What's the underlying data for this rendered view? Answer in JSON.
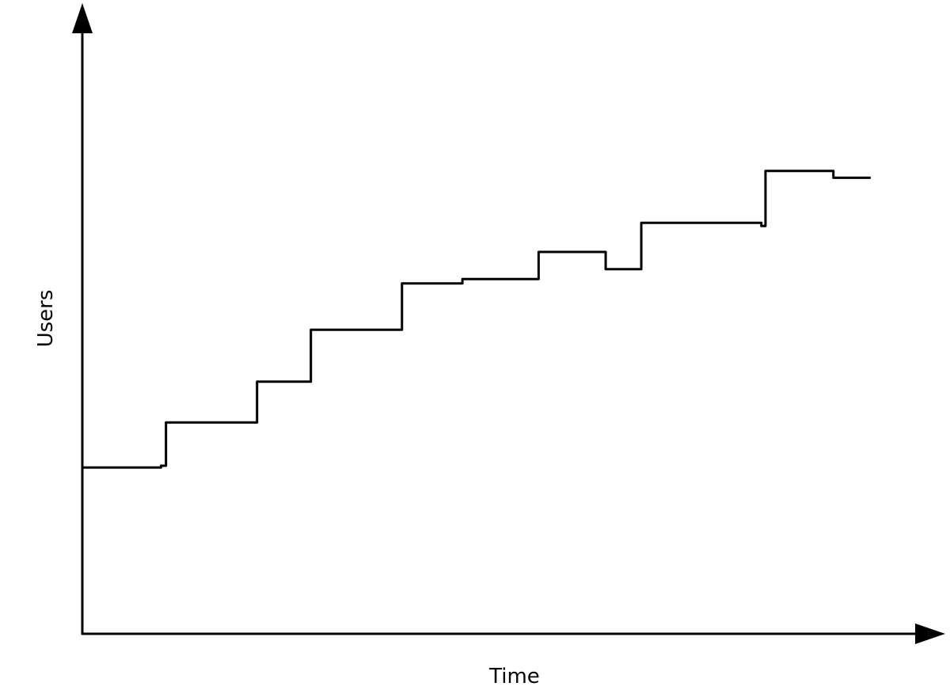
{
  "chart_data": {
    "type": "line",
    "step": "after",
    "title": "",
    "xlabel": "Time",
    "ylabel": "Users",
    "xlim": [
      0,
      100
    ],
    "ylim": [
      0,
      100
    ],
    "grid": false,
    "ticks": false,
    "line_color": "#000000",
    "series": [
      {
        "x": [
          0,
          9.5,
          10.1,
          21.1,
          27.6,
          38.6,
          45.9,
          55.1,
          63.2,
          67.5,
          82.0,
          82.5,
          90.7,
          95.2
        ],
        "y": [
          26.9,
          27.2,
          34.2,
          40.8,
          49.2,
          56.7,
          57.4,
          61.8,
          59.0,
          66.5,
          66.0,
          74.9,
          73.8,
          73.8
        ]
      }
    ]
  }
}
